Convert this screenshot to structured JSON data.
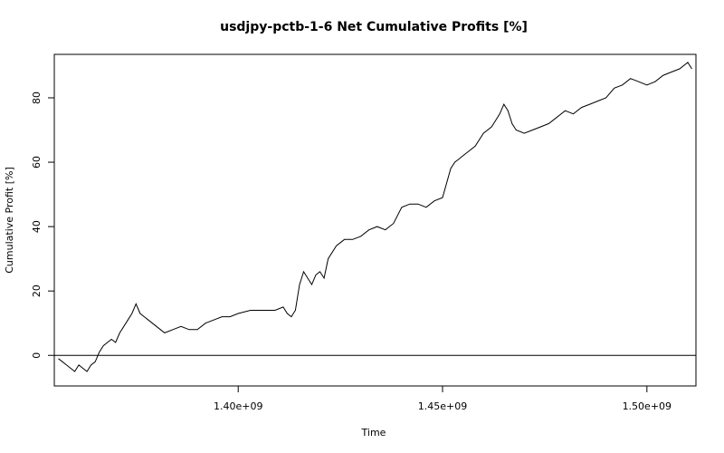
{
  "chart_data": {
    "type": "line",
    "title": "usdjpy-pctb-1-6 Net Cumulative Profits [%]",
    "xlabel": "Time",
    "ylabel": "Cumulative Profit [%]",
    "xlim": [
      1355000000,
      1512000000
    ],
    "ylim": [
      -9.5,
      93.5
    ],
    "x_ticks": [
      1400000000,
      1450000000,
      1500000000
    ],
    "x_tick_labels": [
      "1.40e+09",
      "1.45e+09",
      "1.50e+09"
    ],
    "y_ticks": [
      0,
      20,
      40,
      60,
      80
    ],
    "y_tick_labels": [
      "0",
      "20",
      "40",
      "60",
      "80"
    ],
    "hline": 0,
    "grid": false,
    "legend": "none",
    "series": [
      {
        "color": "#000000",
        "x": [
          1356000000,
          1357000000,
          1358000000,
          1359000000,
          1360000000,
          1361000000,
          1362000000,
          1363000000,
          1364000000,
          1365000000,
          1366000000,
          1367000000,
          1368000000,
          1369000000,
          1370000000,
          1371000000,
          1372000000,
          1373000000,
          1374000000,
          1375000000,
          1376000000,
          1377000000,
          1378000000,
          1380000000,
          1382000000,
          1384000000,
          1386000000,
          1388000000,
          1390000000,
          1392000000,
          1394000000,
          1396000000,
          1398000000,
          1400000000,
          1403000000,
          1406000000,
          1409000000,
          1411000000,
          1412000000,
          1413000000,
          1414000000,
          1415000000,
          1416000000,
          1417000000,
          1418000000,
          1419000000,
          1420000000,
          1421000000,
          1422000000,
          1424000000,
          1426000000,
          1428000000,
          1430000000,
          1432000000,
          1434000000,
          1436000000,
          1438000000,
          1440000000,
          1442000000,
          1444000000,
          1446000000,
          1448000000,
          1450000000,
          1452000000,
          1453000000,
          1454000000,
          1455000000,
          1456000000,
          1458000000,
          1460000000,
          1462000000,
          1464000000,
          1465000000,
          1466000000,
          1467000000,
          1468000000,
          1470000000,
          1472000000,
          1474000000,
          1476000000,
          1478000000,
          1480000000,
          1482000000,
          1484000000,
          1486000000,
          1488000000,
          1490000000,
          1492000000,
          1494000000,
          1496000000,
          1498000000,
          1500000000,
          1502000000,
          1504000000,
          1506000000,
          1508000000,
          1510000000,
          1511000000
        ],
        "y": [
          -1,
          -2,
          -3,
          -4,
          -5,
          -3,
          -4,
          -5,
          -3,
          -2,
          1,
          3,
          4,
          5,
          4,
          7,
          9,
          11,
          13,
          16,
          13,
          12,
          11,
          9,
          7,
          8,
          9,
          8,
          8,
          10,
          11,
          12,
          12,
          13,
          14,
          14,
          14,
          15,
          13,
          12,
          14,
          22,
          26,
          24,
          22,
          25,
          26,
          24,
          30,
          34,
          36,
          36,
          37,
          39,
          40,
          39,
          41,
          46,
          47,
          47,
          46,
          48,
          49,
          58,
          60,
          61,
          62,
          63,
          65,
          69,
          71,
          75,
          78,
          76,
          72,
          70,
          69,
          70,
          71,
          72,
          74,
          76,
          75,
          77,
          78,
          79,
          80,
          83,
          84,
          86,
          85,
          84,
          85,
          87,
          88,
          89,
          91,
          89
        ]
      }
    ]
  }
}
